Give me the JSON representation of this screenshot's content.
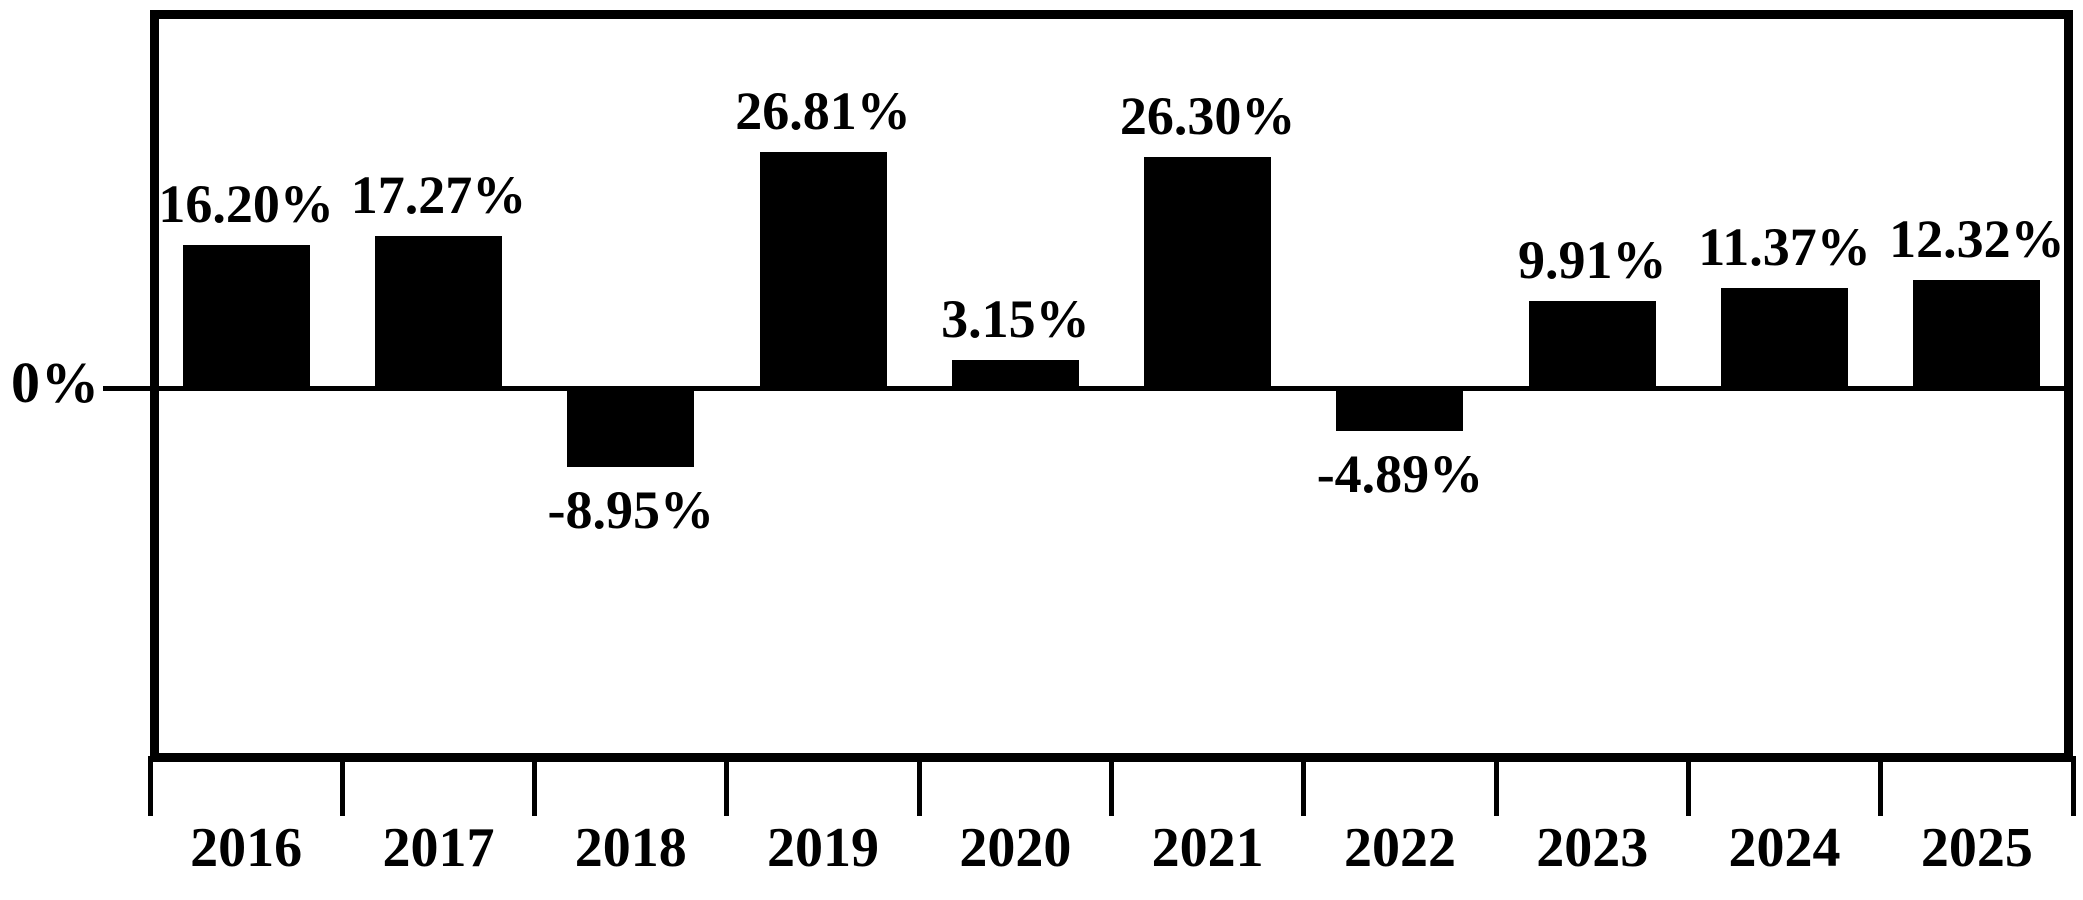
{
  "chart_data": {
    "type": "bar",
    "title": "",
    "xlabel": "",
    "ylabel": "",
    "categories": [
      "2016",
      "2017",
      "2018",
      "2019",
      "2020",
      "2021",
      "2022",
      "2023",
      "2024",
      "2025"
    ],
    "values": [
      16.2,
      17.27,
      -8.95,
      26.81,
      3.15,
      26.3,
      -4.89,
      9.91,
      11.37,
      12.32
    ],
    "value_labels": [
      "16.20%",
      "17.27%",
      "-8.95%",
      "26.81%",
      "3.15%",
      "26.30%",
      "-4.89%",
      "9.91%",
      "11.37%",
      "12.32%"
    ],
    "zero_label": "0%",
    "ylim": [
      -42.5,
      43
    ],
    "grid": false,
    "legend": false,
    "bar_color": "#000000",
    "axis_color": "#000000",
    "background_color": "#ffffff"
  }
}
